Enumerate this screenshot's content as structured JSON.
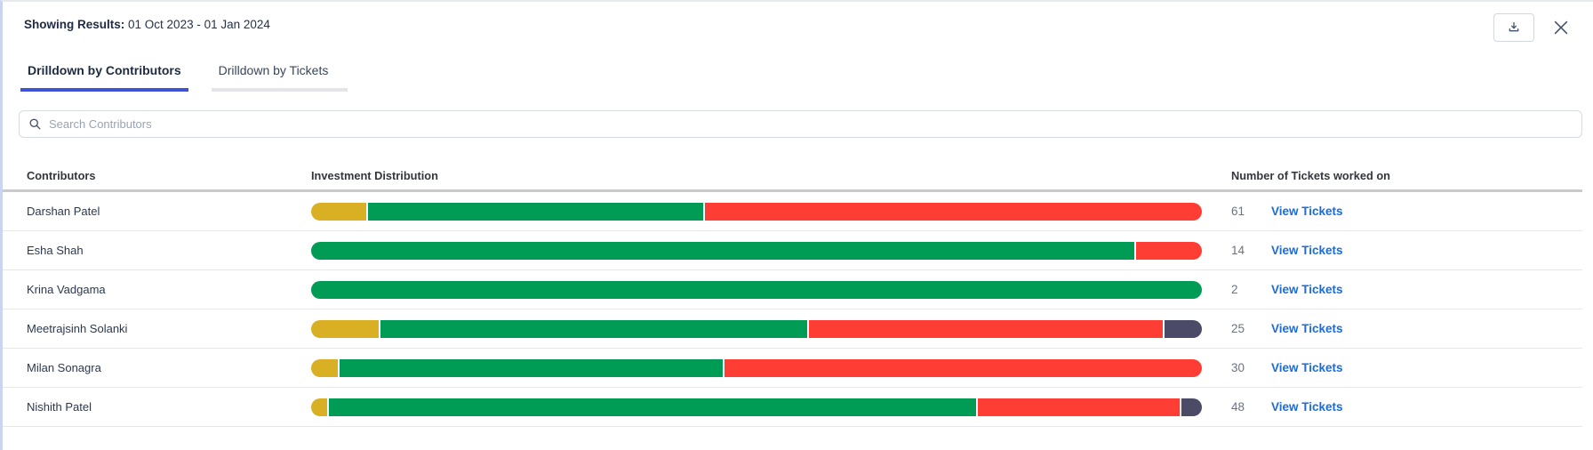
{
  "header": {
    "results_label": "Showing Results:",
    "results_value": "01 Oct 2023 - 01 Jan 2024"
  },
  "tabs": [
    {
      "label": "Drilldown by Contributors",
      "active": true
    },
    {
      "label": "Drilldown by Tickets",
      "active": false
    }
  ],
  "search": {
    "placeholder": "Search Contributors"
  },
  "table": {
    "columns": [
      "Contributors",
      "Investment Distribution",
      "Number of Tickets worked on"
    ],
    "view_tickets_label": "View Tickets",
    "rows": [
      {
        "name": "Darshan Patel",
        "tickets": "61",
        "segments": [
          {
            "color": "gold",
            "pct": 6.2
          },
          {
            "color": "green",
            "pct": 37.6
          },
          {
            "color": "red",
            "pct": 55.8
          }
        ]
      },
      {
        "name": "Esha Shah",
        "tickets": "14",
        "segments": [
          {
            "color": "green",
            "pct": 92.6
          },
          {
            "color": "red",
            "pct": 7.4
          }
        ]
      },
      {
        "name": "Krina Vadgama",
        "tickets": "2",
        "segments": [
          {
            "color": "green",
            "pct": 100
          }
        ]
      },
      {
        "name": "Meetrajsinh Solanki",
        "tickets": "25",
        "segments": [
          {
            "color": "gold",
            "pct": 7.6
          },
          {
            "color": "green",
            "pct": 48.0
          },
          {
            "color": "red",
            "pct": 39.8
          },
          {
            "color": "slate",
            "pct": 4.2
          }
        ]
      },
      {
        "name": "Milan Sonagra",
        "tickets": "30",
        "segments": [
          {
            "color": "gold",
            "pct": 3.0
          },
          {
            "color": "green",
            "pct": 43.0
          },
          {
            "color": "red",
            "pct": 53.5
          }
        ]
      },
      {
        "name": "Nishith Patel",
        "tickets": "48",
        "segments": [
          {
            "color": "gold",
            "pct": 1.8
          },
          {
            "color": "green",
            "pct": 72.8
          },
          {
            "color": "red",
            "pct": 22.7
          },
          {
            "color": "slate",
            "pct": 2.3
          }
        ]
      }
    ]
  },
  "icons": {
    "download": "download-icon",
    "close": "close-icon",
    "search": "search-icon"
  },
  "colors": {
    "gold": "#d9b024",
    "green": "#009b54",
    "red": "#fe3d35",
    "slate": "#4b4a67",
    "link_blue": "#1a6bdb",
    "tab_active_blue": "#3e51d9"
  }
}
